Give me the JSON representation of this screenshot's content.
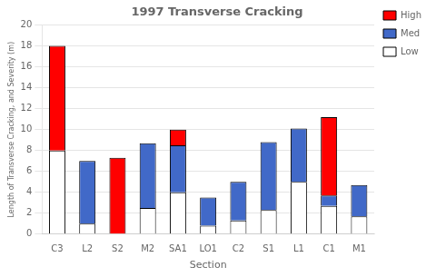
{
  "chart_data": {
    "type": "bar",
    "stacked": true,
    "title": "1997 Transverse Cracking",
    "xlabel": "Section",
    "ylabel": "Length of Transverse Cracking, and Severity (m)",
    "categories": [
      "C3",
      "L2",
      "S2",
      "M2",
      "SA1",
      "LO1",
      "C2",
      "S1",
      "L1",
      "C1",
      "M1"
    ],
    "series": [
      {
        "name": "Low",
        "color": "#ffffff",
        "values": [
          8,
          1,
          0,
          2.5,
          4,
          0.8,
          1.3,
          2.3,
          5,
          2.7,
          1.7
        ]
      },
      {
        "name": "Med",
        "color": "#4169c8",
        "values": [
          0,
          6,
          0,
          6.2,
          4.5,
          2.7,
          3.7,
          6.5,
          5.1,
          1,
          3
        ]
      },
      {
        "name": "High",
        "color": "#ff0000",
        "values": [
          10,
          0,
          7.3,
          0,
          1.5,
          0,
          0,
          0,
          0,
          7.5,
          0
        ]
      }
    ],
    "ylim": [
      0,
      20
    ],
    "yticks": [
      0,
      2,
      4,
      6,
      8,
      10,
      12,
      14,
      16,
      18,
      20
    ],
    "grid": true,
    "legend": "upper right"
  }
}
